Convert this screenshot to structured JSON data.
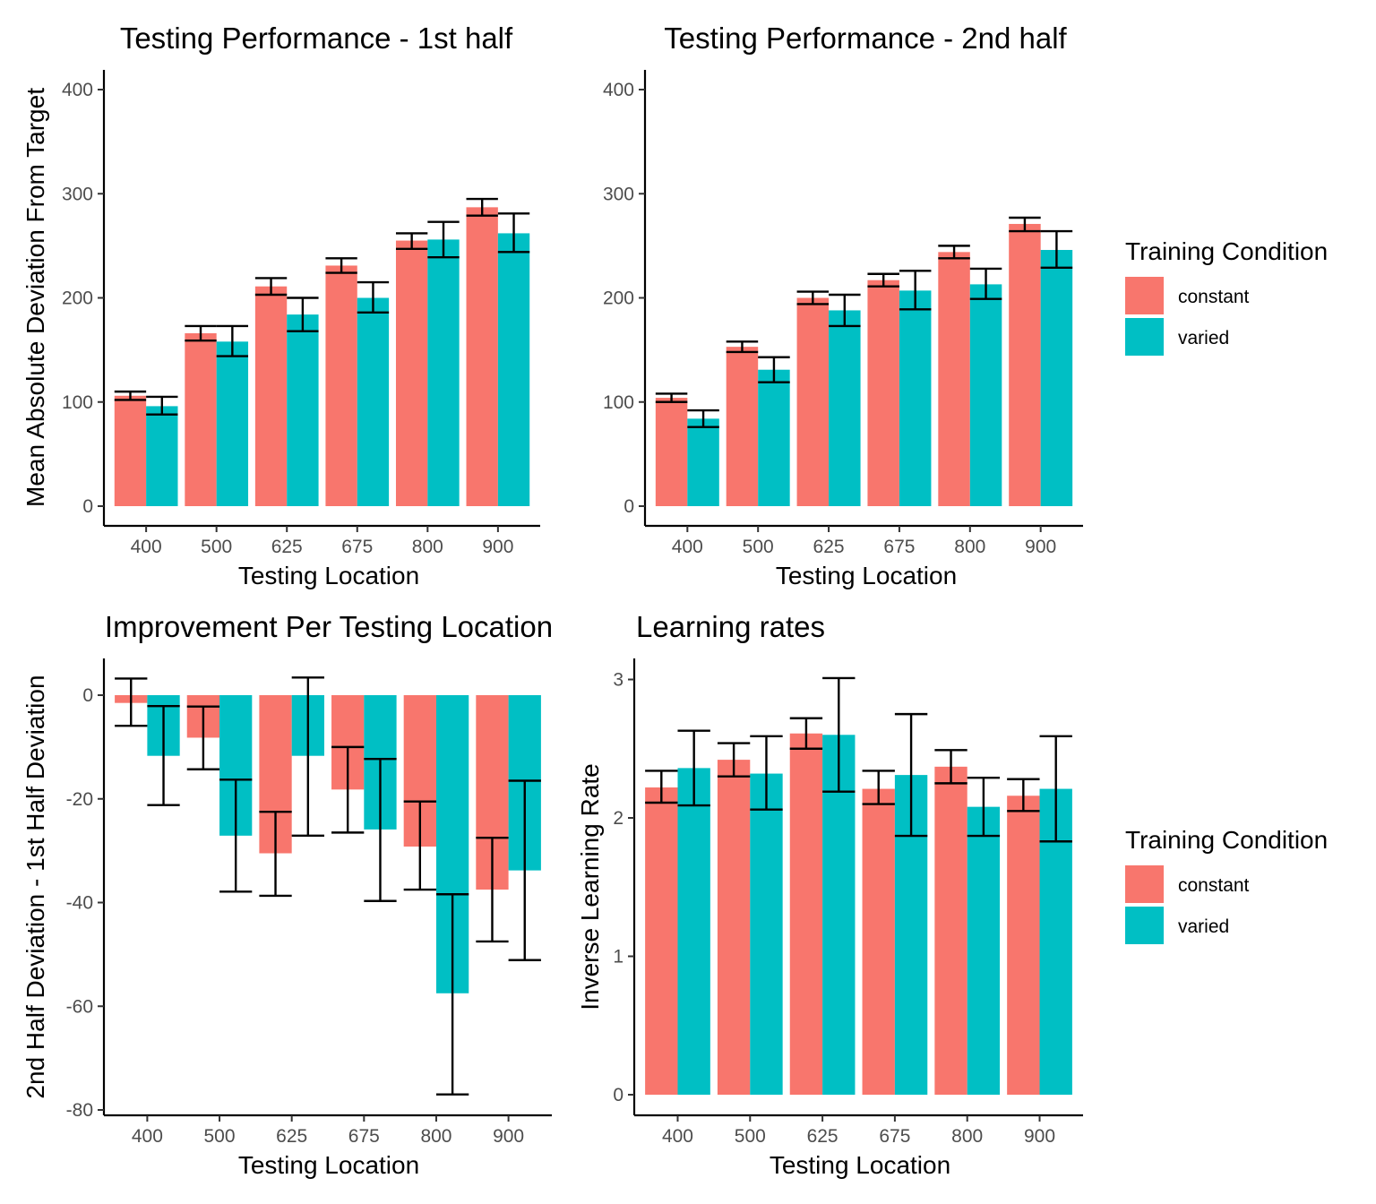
{
  "colors": {
    "constant": "#F8766D",
    "varied": "#00BFC4"
  },
  "chart_data": [
    {
      "type": "bar",
      "title": "Testing Performance - 1st half",
      "xlabel": "Testing Location",
      "ylabel": "Mean Absolute Deviation From Target",
      "categories": [
        "400",
        "500",
        "625",
        "675",
        "800",
        "900"
      ],
      "ylim": [
        0,
        420
      ],
      "yticks": [
        0,
        100,
        200,
        300,
        400
      ],
      "series": [
        {
          "name": "constant",
          "values": [
            106,
            166,
            211,
            231,
            255,
            287
          ],
          "err_low": [
            102,
            159,
            203,
            224,
            247,
            279
          ],
          "err_high": [
            110,
            173,
            219,
            238,
            262,
            295
          ]
        },
        {
          "name": "varied",
          "values": [
            96,
            158,
            184,
            200,
            256,
            262
          ],
          "err_low": [
            88,
            144,
            168,
            186,
            239,
            244
          ],
          "err_high": [
            105,
            173,
            200,
            215,
            273,
            281
          ]
        }
      ]
    },
    {
      "type": "bar",
      "title": "Testing Performance - 2nd half",
      "xlabel": "Testing Location",
      "ylabel": "",
      "categories": [
        "400",
        "500",
        "625",
        "675",
        "800",
        "900"
      ],
      "ylim": [
        0,
        420
      ],
      "yticks": [
        0,
        100,
        200,
        300,
        400
      ],
      "series": [
        {
          "name": "constant",
          "values": [
            104,
            153,
            200,
            217,
            244,
            271
          ],
          "err_low": [
            100,
            148,
            194,
            211,
            238,
            264
          ],
          "err_high": [
            108,
            158,
            206,
            223,
            250,
            277
          ]
        },
        {
          "name": "varied",
          "values": [
            84,
            131,
            188,
            207,
            213,
            246
          ],
          "err_low": [
            76,
            119,
            173,
            189,
            199,
            229
          ],
          "err_high": [
            92,
            143,
            203,
            226,
            228,
            264
          ]
        }
      ]
    },
    {
      "type": "bar",
      "title": "Improvement Per Testing Location",
      "xlabel": "Testing Location",
      "ylabel": "2nd Half Deviation - 1st Half Deviation",
      "categories": [
        "400",
        "500",
        "625",
        "675",
        "800",
        "900"
      ],
      "ylim": [
        -80.5,
        7.5
      ],
      "yticks": [
        0,
        -20,
        -40,
        -60,
        -80
      ],
      "series": [
        {
          "name": "constant",
          "values": [
            -1.5,
            -8.2,
            -30.5,
            -18.2,
            -29.2,
            -37.5
          ],
          "err_low": [
            -5.9,
            -14.3,
            -38.7,
            -26.5,
            -37.5,
            -47.5
          ],
          "err_high": [
            3.2,
            -2.2,
            -22.5,
            -10.0,
            -20.5,
            -27.5
          ]
        },
        {
          "name": "varied",
          "values": [
            -11.7,
            -27.1,
            -11.7,
            -25.9,
            -57.5,
            -33.8
          ],
          "err_low": [
            -21.2,
            -37.9,
            -27.1,
            -39.7,
            -77.0,
            -51.1
          ],
          "err_high": [
            -2.1,
            -16.3,
            3.4,
            -12.3,
            -38.4,
            -16.5
          ]
        }
      ]
    },
    {
      "type": "bar",
      "title": "Learning rates",
      "xlabel": "Testing Location",
      "ylabel": "Inverse Learning Rate",
      "categories": [
        "400",
        "500",
        "625",
        "675",
        "800",
        "900"
      ],
      "ylim": [
        0,
        3.13
      ],
      "yticks": [
        0,
        1,
        2,
        3
      ],
      "series": [
        {
          "name": "constant",
          "values": [
            2.22,
            2.42,
            2.61,
            2.21,
            2.37,
            2.16
          ],
          "err_low": [
            2.11,
            2.3,
            2.5,
            2.1,
            2.25,
            2.05
          ],
          "err_high": [
            2.34,
            2.54,
            2.72,
            2.34,
            2.49,
            2.28
          ]
        },
        {
          "name": "varied",
          "values": [
            2.36,
            2.32,
            2.6,
            2.31,
            2.08,
            2.21
          ],
          "err_low": [
            2.09,
            2.06,
            2.19,
            1.87,
            1.87,
            1.83
          ],
          "err_high": [
            2.63,
            2.59,
            3.01,
            2.75,
            2.29,
            2.59
          ]
        }
      ]
    }
  ],
  "legends": [
    {
      "title": "Training Condition",
      "items": [
        "constant",
        "varied"
      ]
    },
    {
      "title": "Training Condition",
      "items": [
        "constant",
        "varied"
      ]
    }
  ]
}
